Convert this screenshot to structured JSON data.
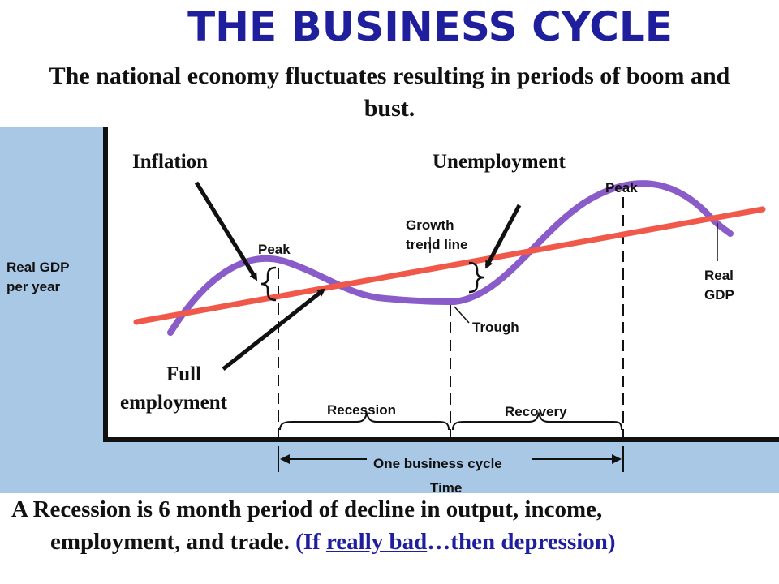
{
  "title": "THE BUSINESS CYCLE",
  "subtitle": "The national economy fluctuates resulting in periods of boom and bust.",
  "labels": {
    "inflation": "Inflation",
    "unemployment": "Unemployment",
    "full_employment_line1": "Full",
    "full_employment_line2": "employment",
    "peak_left": "Peak",
    "peak_right": "Peak",
    "growth_trend_line1": "Growth",
    "growth_trend_line2": "trend line",
    "trough": "Trough",
    "real_gdp_line1": "Real",
    "real_gdp_line2": "GDP",
    "y_axis_line1": "Real GDP",
    "y_axis_line2": "per year",
    "recession": "Recession",
    "recovery": "Recovery",
    "one_business_cycle": "One business cycle",
    "x_axis": "Time"
  },
  "footer": {
    "line1": "A Recession is 6 month period of decline in output, income,",
    "line2_main": "employment,  and trade.",
    "line2_open": "(If",
    "line2_link": "really bad",
    "line2_close": "…then depression)"
  },
  "colors": {
    "title": "#1f1f9e",
    "gdp_curve": "#8a5cc9",
    "trend_line": "#f0584a",
    "panel": "#a9c8e6"
  }
}
